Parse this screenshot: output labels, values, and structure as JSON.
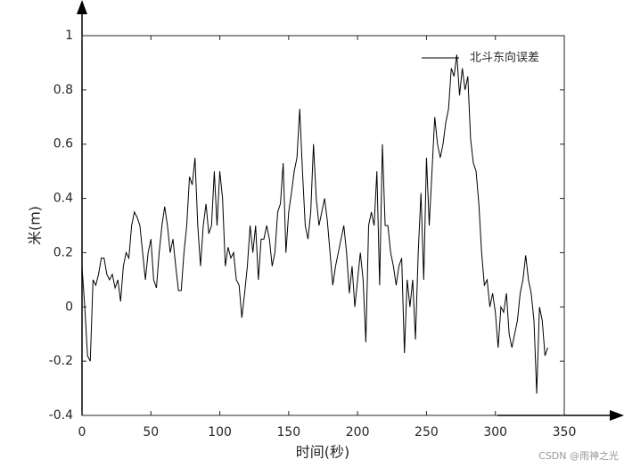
{
  "chart_data": {
    "type": "line",
    "xlabel": "时间(秒)",
    "ylabel": "米(m)",
    "xlim": [
      0,
      350
    ],
    "ylim": [
      -0.4,
      1
    ],
    "xticks": [
      0,
      50,
      100,
      150,
      200,
      250,
      300,
      350
    ],
    "yticks": [
      -0.4,
      -0.2,
      0,
      0.2,
      0.4,
      0.6,
      0.8,
      1
    ],
    "legend": "top-right",
    "x": [
      0,
      2,
      4,
      6,
      8,
      10,
      12,
      14,
      16,
      18,
      20,
      22,
      24,
      26,
      28,
      30,
      32,
      34,
      36,
      38,
      40,
      42,
      44,
      46,
      48,
      50,
      52,
      54,
      56,
      58,
      60,
      62,
      64,
      66,
      68,
      70,
      72,
      74,
      76,
      78,
      80,
      82,
      84,
      86,
      88,
      90,
      92,
      94,
      96,
      98,
      100,
      102,
      104,
      106,
      108,
      110,
      112,
      114,
      116,
      118,
      120,
      122,
      124,
      126,
      128,
      130,
      132,
      134,
      136,
      138,
      140,
      142,
      144,
      146,
      148,
      150,
      152,
      154,
      156,
      158,
      160,
      162,
      164,
      166,
      168,
      170,
      172,
      174,
      176,
      178,
      180,
      182,
      184,
      186,
      188,
      190,
      192,
      194,
      196,
      198,
      200,
      202,
      204,
      206,
      208,
      210,
      212,
      214,
      216,
      218,
      220,
      222,
      224,
      226,
      228,
      230,
      232,
      234,
      236,
      238,
      240,
      242,
      244,
      246,
      248,
      250,
      252,
      254,
      256,
      258,
      260,
      262,
      264,
      266,
      268,
      270,
      272,
      274,
      276,
      278,
      280,
      282,
      284,
      286,
      288,
      290,
      292,
      294,
      296,
      298,
      300,
      302,
      304,
      306,
      308,
      310,
      312,
      314,
      316,
      318,
      320,
      322,
      324,
      326,
      328,
      330,
      332,
      334,
      336,
      338
    ],
    "series": [
      {
        "name": "北斗东向误差",
        "color": "#000000",
        "values": [
          0.15,
          0.0,
          -0.18,
          -0.2,
          0.1,
          0.08,
          0.12,
          0.18,
          0.18,
          0.12,
          0.1,
          0.12,
          0.07,
          0.1,
          0.02,
          0.15,
          0.2,
          0.18,
          0.3,
          0.35,
          0.33,
          0.3,
          0.2,
          0.1,
          0.2,
          0.25,
          0.1,
          0.07,
          0.2,
          0.3,
          0.37,
          0.3,
          0.2,
          0.25,
          0.15,
          0.06,
          0.06,
          0.2,
          0.3,
          0.48,
          0.45,
          0.55,
          0.3,
          0.15,
          0.3,
          0.38,
          0.27,
          0.3,
          0.5,
          0.3,
          0.5,
          0.4,
          0.15,
          0.22,
          0.18,
          0.2,
          0.1,
          0.08,
          -0.04,
          0.05,
          0.15,
          0.3,
          0.2,
          0.3,
          0.1,
          0.25,
          0.25,
          0.3,
          0.25,
          0.15,
          0.2,
          0.35,
          0.38,
          0.53,
          0.2,
          0.35,
          0.42,
          0.5,
          0.55,
          0.73,
          0.5,
          0.3,
          0.25,
          0.35,
          0.6,
          0.4,
          0.3,
          0.35,
          0.4,
          0.32,
          0.2,
          0.08,
          0.15,
          0.2,
          0.25,
          0.3,
          0.2,
          0.05,
          0.15,
          0.0,
          0.1,
          0.2,
          0.1,
          -0.13,
          0.3,
          0.35,
          0.3,
          0.5,
          0.08,
          0.6,
          0.3,
          0.3,
          0.2,
          0.15,
          0.08,
          0.15,
          0.18,
          -0.17,
          0.1,
          0.0,
          0.1,
          -0.12,
          0.2,
          0.42,
          0.1,
          0.55,
          0.3,
          0.5,
          0.7,
          0.6,
          0.55,
          0.6,
          0.68,
          0.73,
          0.88,
          0.85,
          0.93,
          0.78,
          0.88,
          0.8,
          0.85,
          0.62,
          0.53,
          0.5,
          0.38,
          0.2,
          0.08,
          0.1,
          0.0,
          0.05,
          -0.02,
          -0.15,
          0.0,
          -0.02,
          0.05,
          -0.1,
          -0.15,
          -0.1,
          -0.05,
          0.05,
          0.1,
          0.19,
          0.1,
          0.05,
          -0.05,
          -0.32,
          0.0,
          -0.05,
          -0.18,
          -0.15
        ]
      }
    ]
  },
  "watermark": "CSDN @雨神之光"
}
